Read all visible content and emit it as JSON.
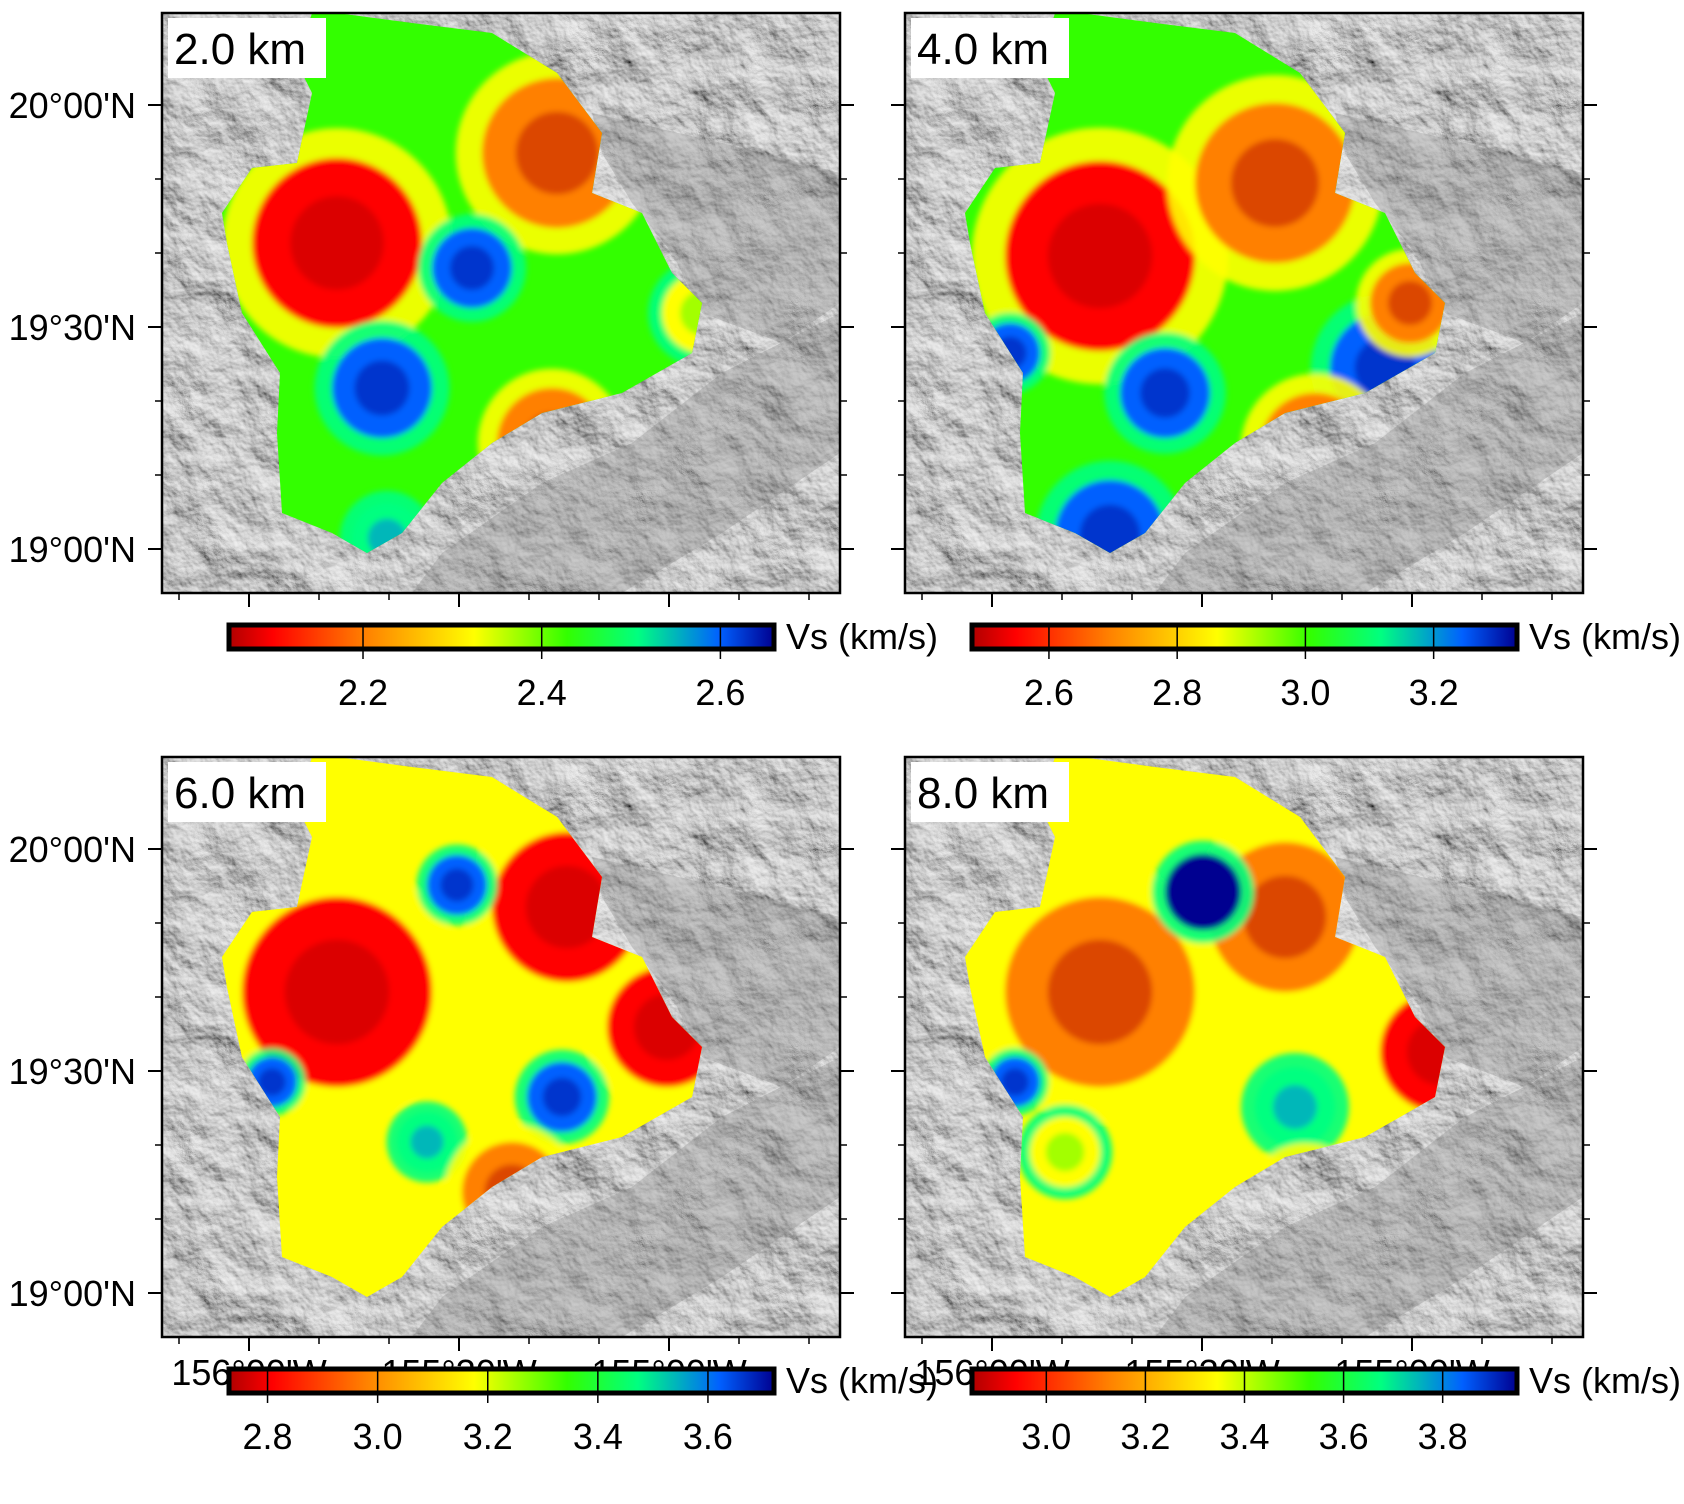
{
  "axes": {
    "lat_labels": [
      "20°00'N",
      "19°30'N",
      "19°00'N"
    ],
    "lon_labels": [
      "156°00'W",
      "155°30'W",
      "155°00'W"
    ]
  },
  "colorscale": {
    "stops": [
      "#b00000",
      "#ff0000",
      "#ff8000",
      "#ffff00",
      "#33ff00",
      "#00ff80",
      "#0060ff",
      "#000090"
    ]
  },
  "panels": [
    {
      "depth_label": "2.0 km",
      "variant": "a",
      "colorbar": {
        "title": "Vs (km/s)",
        "ticks": [
          "2.2",
          "2.4",
          "2.6"
        ]
      }
    },
    {
      "depth_label": "4.0 km",
      "variant": "b",
      "colorbar": {
        "title": "Vs (km/s)",
        "ticks": [
          "2.6",
          "2.8",
          "3.0",
          "3.2"
        ]
      }
    },
    {
      "depth_label": "6.0 km",
      "variant": "c",
      "colorbar": {
        "title": "Vs (km/s)",
        "ticks": [
          "2.8",
          "3.0",
          "3.2",
          "3.4",
          "3.6"
        ]
      }
    },
    {
      "depth_label": "8.0 km",
      "variant": "d",
      "colorbar": {
        "title": "Vs (km/s)",
        "ticks": [
          "3.0",
          "3.2",
          "3.4",
          "3.6",
          "3.8"
        ]
      }
    }
  ]
}
